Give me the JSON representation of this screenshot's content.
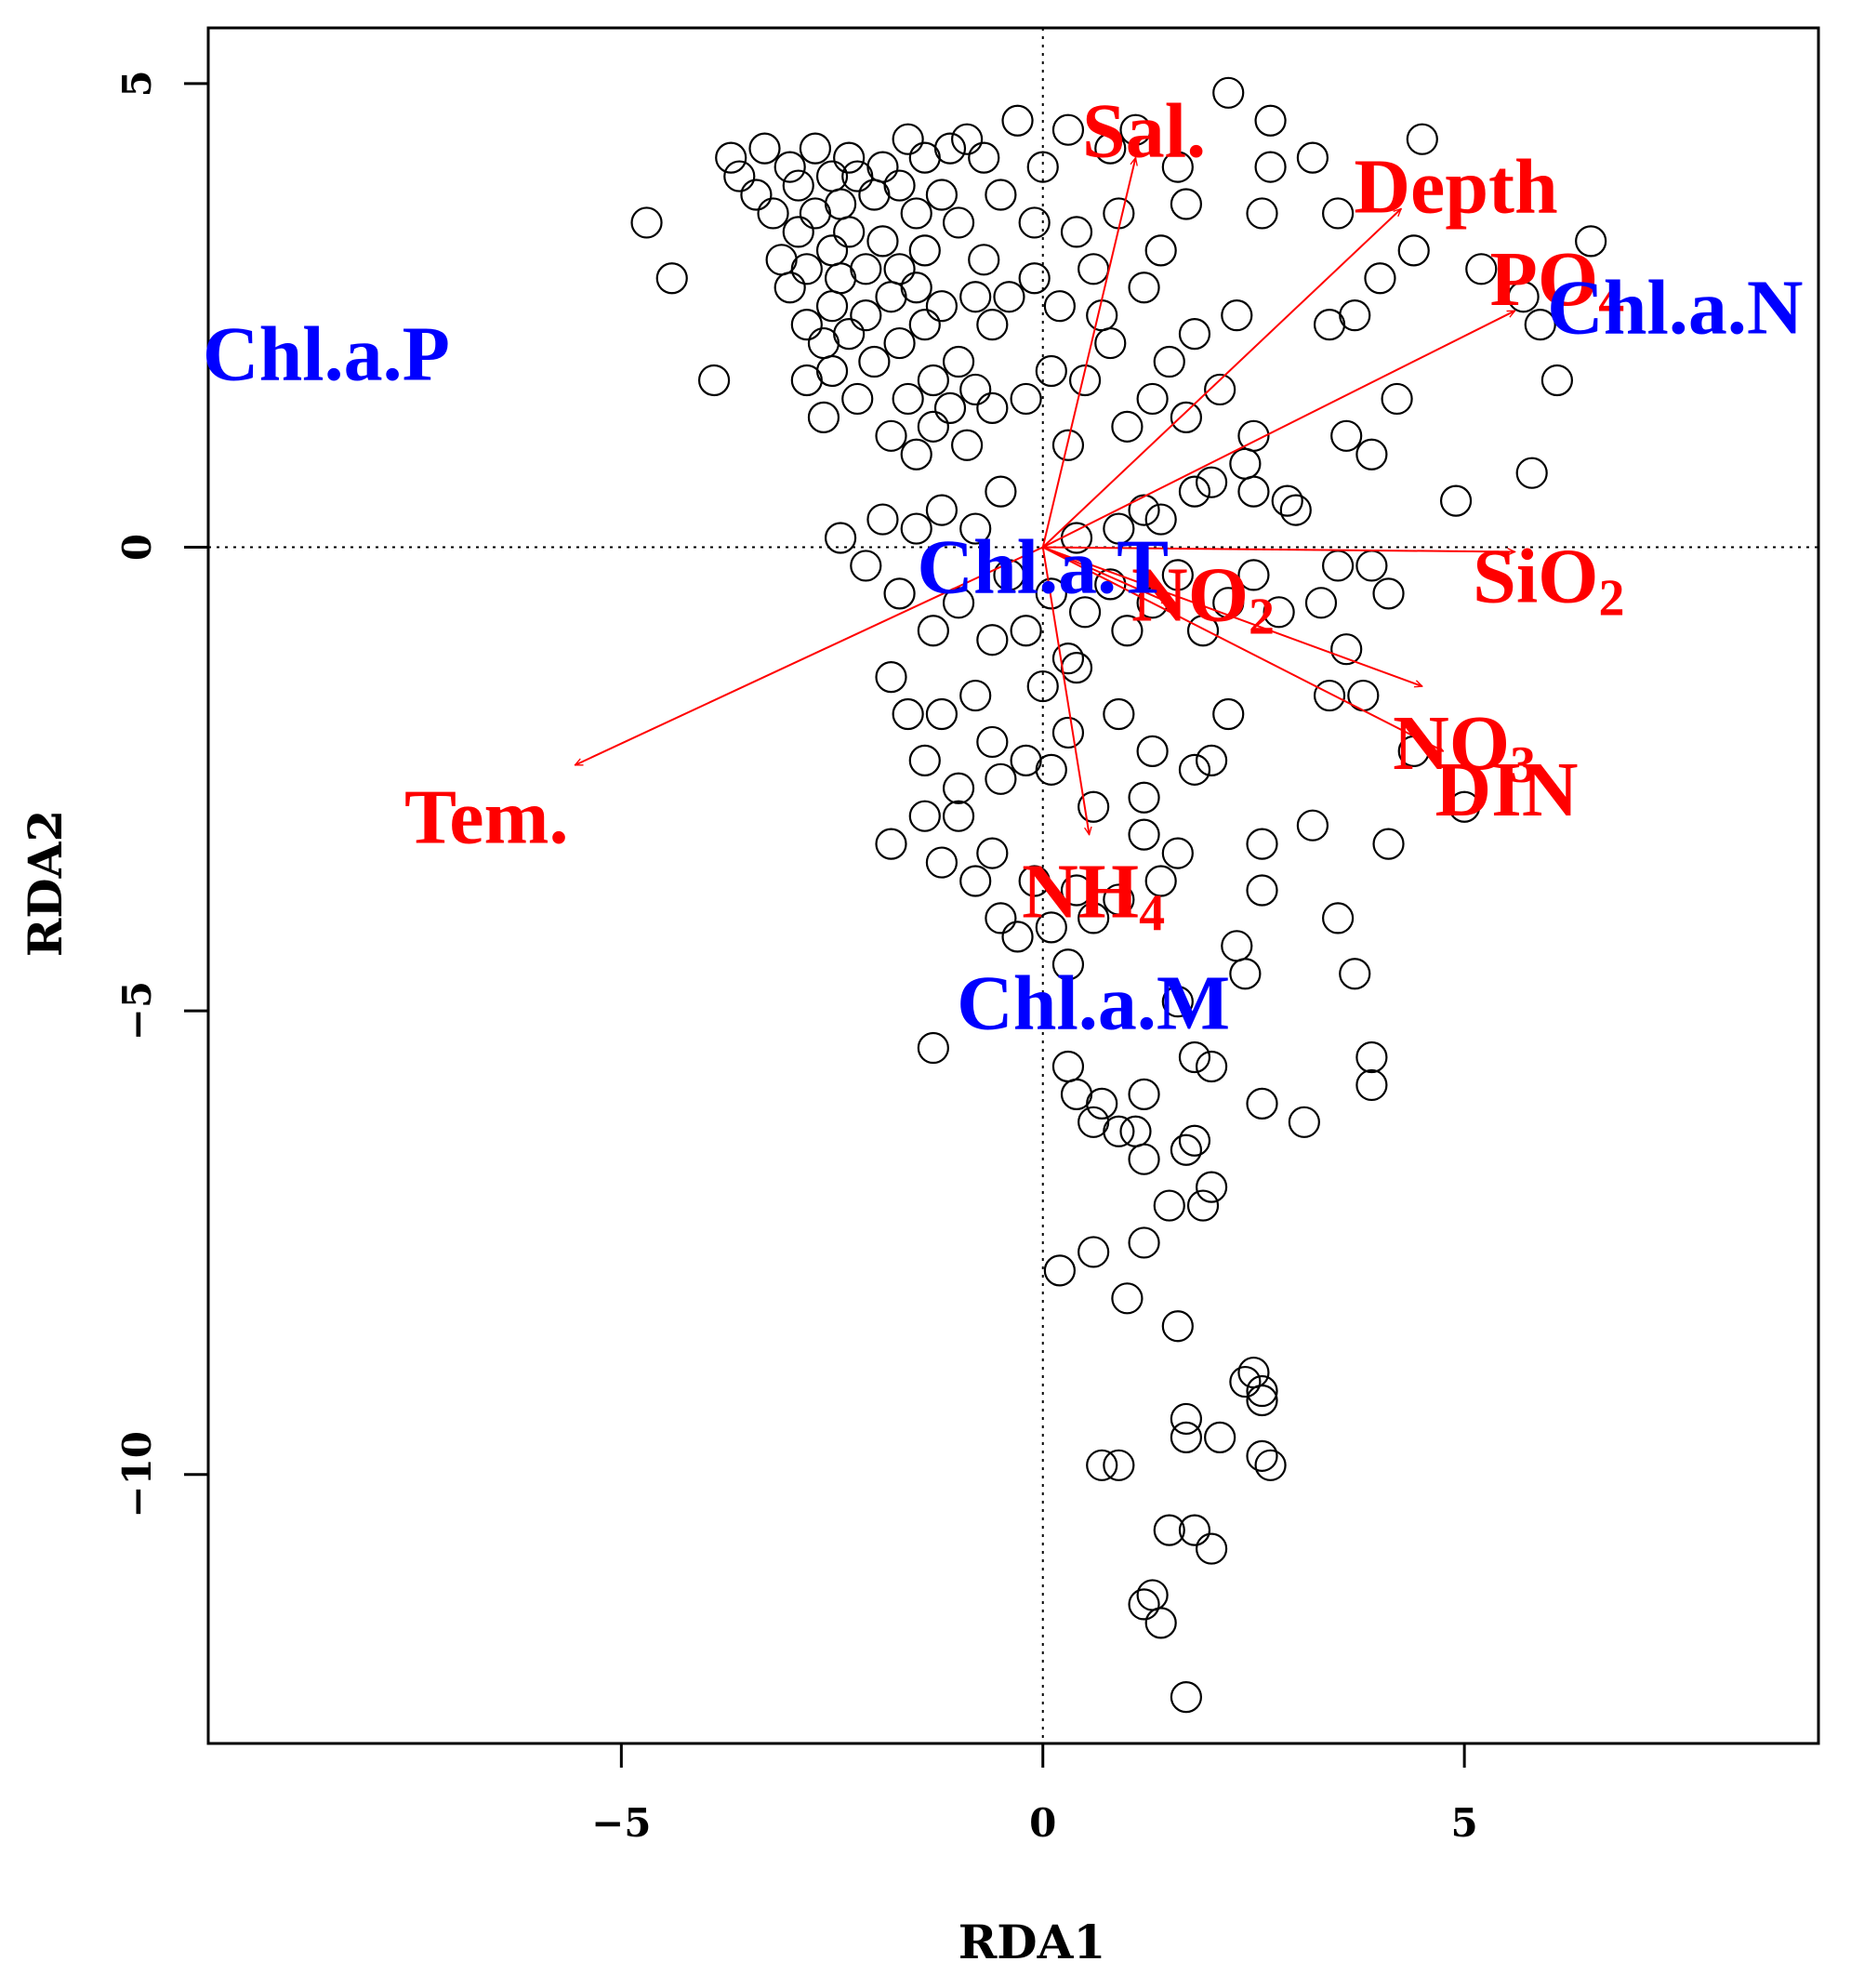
{
  "chart_data": {
    "type": "scatter",
    "xlabel": "RDA1",
    "ylabel": "RDA2",
    "xlim": [
      -9.9,
      9.2
    ],
    "ylim": [
      -12.9,
      5.6
    ],
    "x_ticks": [
      {
        "value": -5,
        "label": "−5"
      },
      {
        "value": 0,
        "label": "0"
      },
      {
        "value": 5,
        "label": "5"
      }
    ],
    "y_ticks": [
      {
        "value": -10,
        "label": "−10"
      },
      {
        "value": -5,
        "label": "−5"
      },
      {
        "value": 0,
        "label": "0"
      },
      {
        "value": 5,
        "label": "5"
      }
    ],
    "reference_lines": {
      "x": 0,
      "y": 0,
      "style": "dotted"
    },
    "colors": {
      "environment": "#ff0000",
      "response": "#0000ff",
      "points": "#000000"
    },
    "env_vectors": [
      {
        "id": "sal",
        "base": "Sal.",
        "sub": "",
        "x": 1.1,
        "y": 4.2,
        "label_x": 1.2,
        "label_y": 4.4
      },
      {
        "id": "depth",
        "base": "Depth",
        "sub": "",
        "x": 4.25,
        "y": 3.65,
        "label_x": 4.9,
        "label_y": 3.8
      },
      {
        "id": "po4",
        "base": "PO",
        "sub": "4",
        "x": 5.6,
        "y": 2.55,
        "label_x": 6.1,
        "label_y": 2.8
      },
      {
        "id": "sio2",
        "base": "SiO",
        "sub": "2",
        "x": 5.6,
        "y": -0.05,
        "label_x": 6.0,
        "label_y": -0.4
      },
      {
        "id": "no2",
        "base": "NO",
        "sub": "2",
        "x": 1.5,
        "y": -0.6,
        "label_x": 1.9,
        "label_y": -0.6
      },
      {
        "id": "no3",
        "base": "NO",
        "sub": "3",
        "x": 4.5,
        "y": -1.5,
        "label_x": 5.0,
        "label_y": -2.2
      },
      {
        "id": "din",
        "base": "DIN",
        "sub": "",
        "x": 4.75,
        "y": -2.2,
        "label_x": 5.5,
        "label_y": -2.7
      },
      {
        "id": "nh4",
        "base": "NH",
        "sub": "4",
        "x": 0.55,
        "y": -3.1,
        "label_x": 0.6,
        "label_y": -3.8
      },
      {
        "id": "tem",
        "base": "Tem.",
        "sub": "",
        "x": -5.55,
        "y": -2.35,
        "label_x": -6.6,
        "label_y": -3.0
      }
    ],
    "response_labels": [
      {
        "id": "chl-a-p",
        "text": "Chl.a.P",
        "x": -8.5,
        "y": 2.0
      },
      {
        "id": "chl-a-n",
        "text": "Chl.a.N",
        "x": 7.5,
        "y": 2.5
      },
      {
        "id": "chl-a-t",
        "text": "Chl.a.T",
        "x": 0.0,
        "y": -0.3
      },
      {
        "id": "chl-a-m",
        "text": "Chl.a.M",
        "x": 0.6,
        "y": -5.0
      }
    ],
    "points": [
      [
        -4.7,
        3.5
      ],
      [
        -4.4,
        2.9
      ],
      [
        -3.9,
        1.8
      ],
      [
        -3.7,
        4.2
      ],
      [
        -3.6,
        4.0
      ],
      [
        -3.4,
        3.8
      ],
      [
        -3.3,
        4.3
      ],
      [
        -3.2,
        3.6
      ],
      [
        -3.1,
        3.1
      ],
      [
        -3.0,
        4.1
      ],
      [
        -3.0,
        2.8
      ],
      [
        -2.9,
        3.9
      ],
      [
        -2.9,
        3.4
      ],
      [
        -2.8,
        3.0
      ],
      [
        -2.8,
        2.4
      ],
      [
        -2.8,
        1.8
      ],
      [
        -2.7,
        4.3
      ],
      [
        -2.7,
        3.6
      ],
      [
        -2.6,
        2.2
      ],
      [
        -2.6,
        1.4
      ],
      [
        -2.5,
        4.0
      ],
      [
        -2.5,
        3.2
      ],
      [
        -2.5,
        2.6
      ],
      [
        -2.5,
        1.9
      ],
      [
        -2.4,
        3.7
      ],
      [
        -2.4,
        2.9
      ],
      [
        -2.3,
        4.2
      ],
      [
        -2.3,
        3.4
      ],
      [
        -2.3,
        2.3
      ],
      [
        -2.2,
        1.6
      ],
      [
        -2.2,
        4.0
      ],
      [
        -2.1,
        3.0
      ],
      [
        -2.1,
        2.5
      ],
      [
        -2.0,
        3.8
      ],
      [
        -2.0,
        2.0
      ],
      [
        -1.9,
        4.1
      ],
      [
        -1.9,
        3.3
      ],
      [
        -1.8,
        2.7
      ],
      [
        -1.8,
        1.2
      ],
      [
        -1.7,
        3.9
      ],
      [
        -1.7,
        3.0
      ],
      [
        -1.7,
        2.2
      ],
      [
        -1.6,
        4.4
      ],
      [
        -1.6,
        1.6
      ],
      [
        -1.5,
        3.6
      ],
      [
        -1.5,
        2.8
      ],
      [
        -1.5,
        1.0
      ],
      [
        -1.4,
        4.2
      ],
      [
        -1.4,
        3.2
      ],
      [
        -1.4,
        2.4
      ],
      [
        -1.3,
        1.8
      ],
      [
        -1.3,
        1.3
      ],
      [
        -1.2,
        3.8
      ],
      [
        -1.2,
        2.6
      ],
      [
        -1.1,
        4.3
      ],
      [
        -1.1,
        1.5
      ],
      [
        -1.0,
        3.5
      ],
      [
        -1.0,
        2.0
      ],
      [
        -0.9,
        4.4
      ],
      [
        -0.9,
        1.1
      ],
      [
        -0.8,
        2.7
      ],
      [
        -0.8,
        1.7
      ],
      [
        -0.7,
        4.2
      ],
      [
        -0.7,
        3.1
      ],
      [
        -0.6,
        2.4
      ],
      [
        -0.6,
        1.5
      ],
      [
        -0.5,
        3.8
      ],
      [
        -0.5,
        0.6
      ],
      [
        -0.4,
        2.7
      ],
      [
        -0.3,
        4.6
      ],
      [
        -0.2,
        1.6
      ],
      [
        -0.1,
        2.9
      ],
      [
        -0.1,
        3.5
      ],
      [
        0.0,
        4.1
      ],
      [
        0.1,
        1.9
      ],
      [
        0.2,
        2.6
      ],
      [
        0.3,
        4.5
      ],
      [
        0.3,
        1.1
      ],
      [
        0.4,
        3.4
      ],
      [
        0.5,
        1.8
      ],
      [
        0.6,
        3.0
      ],
      [
        0.7,
        2.5
      ],
      [
        0.8,
        4.3
      ],
      [
        0.8,
        2.2
      ],
      [
        0.9,
        3.6
      ],
      [
        1.0,
        1.3
      ],
      [
        1.1,
        4.5
      ],
      [
        1.2,
        2.8
      ],
      [
        1.3,
        1.6
      ],
      [
        1.4,
        3.2
      ],
      [
        1.5,
        2.0
      ],
      [
        1.6,
        4.1
      ],
      [
        1.7,
        3.7
      ],
      [
        1.7,
        1.4
      ],
      [
        1.8,
        2.3
      ],
      [
        2.0,
        0.7
      ],
      [
        2.1,
        1.7
      ],
      [
        2.2,
        4.9
      ],
      [
        2.3,
        2.5
      ],
      [
        2.4,
        0.9
      ],
      [
        2.5,
        1.2
      ],
      [
        2.6,
        3.6
      ],
      [
        2.7,
        4.1
      ],
      [
        2.7,
        4.6
      ],
      [
        2.9,
        0.5
      ],
      [
        3.2,
        4.2
      ],
      [
        3.4,
        2.4
      ],
      [
        3.5,
        3.6
      ],
      [
        3.6,
        1.2
      ],
      [
        3.7,
        2.5
      ],
      [
        3.9,
        1.0
      ],
      [
        4.0,
        2.9
      ],
      [
        4.2,
        1.6
      ],
      [
        4.4,
        3.2
      ],
      [
        4.5,
        4.4
      ],
      [
        4.9,
        0.5
      ],
      [
        5.2,
        3.0
      ],
      [
        5.8,
        0.8
      ],
      [
        5.9,
        2.4
      ],
      [
        6.1,
        1.8
      ],
      [
        6.5,
        3.3
      ],
      [
        5.7,
        2.7
      ],
      [
        3.0,
        0.4
      ],
      [
        2.5,
        0.6
      ],
      [
        1.8,
        0.6
      ],
      [
        1.4,
        0.3
      ],
      [
        1.2,
        0.4
      ],
      [
        0.9,
        0.2
      ],
      [
        0.4,
        0.1
      ],
      [
        -2.4,
        0.1
      ],
      [
        -2.1,
        -0.2
      ],
      [
        -1.9,
        0.3
      ],
      [
        -1.7,
        -0.5
      ],
      [
        -1.5,
        0.2
      ],
      [
        -1.3,
        -0.9
      ],
      [
        -1.2,
        0.4
      ],
      [
        -1.0,
        -0.6
      ],
      [
        -0.8,
        0.2
      ],
      [
        -0.6,
        -1.0
      ],
      [
        -0.4,
        -0.3
      ],
      [
        -0.2,
        -0.9
      ],
      [
        0.1,
        -0.5
      ],
      [
        0.3,
        -1.2
      ],
      [
        0.5,
        -0.7
      ],
      [
        0.8,
        -0.4
      ],
      [
        1.0,
        -0.9
      ],
      [
        1.3,
        -0.6
      ],
      [
        1.6,
        -0.3
      ],
      [
        1.9,
        -0.9
      ],
      [
        2.2,
        -0.6
      ],
      [
        2.5,
        -0.3
      ],
      [
        2.8,
        -0.7
      ],
      [
        3.3,
        -0.6
      ],
      [
        3.5,
        -0.2
      ],
      [
        3.6,
        -1.1
      ],
      [
        3.9,
        -0.2
      ],
      [
        4.1,
        -0.5
      ],
      [
        3.4,
        -1.6
      ],
      [
        3.8,
        -1.6
      ],
      [
        4.4,
        -2.2
      ],
      [
        5.0,
        -2.8
      ],
      [
        -1.8,
        -1.4
      ],
      [
        -1.6,
        -1.8
      ],
      [
        -1.4,
        -2.3
      ],
      [
        -1.2,
        -1.8
      ],
      [
        -1.0,
        -2.6
      ],
      [
        -0.8,
        -1.6
      ],
      [
        -0.6,
        -2.1
      ],
      [
        -0.5,
        -2.5
      ],
      [
        -0.2,
        -2.3
      ],
      [
        0.0,
        -1.5
      ],
      [
        0.1,
        -2.4
      ],
      [
        0.3,
        -2.0
      ],
      [
        0.4,
        -1.3
      ],
      [
        0.6,
        -2.8
      ],
      [
        0.9,
        -1.8
      ],
      [
        1.2,
        -2.7
      ],
      [
        1.3,
        -2.2
      ],
      [
        1.6,
        -3.3
      ],
      [
        1.8,
        -2.4
      ],
      [
        2.0,
        -2.3
      ],
      [
        2.2,
        -1.8
      ],
      [
        2.6,
        -3.2
      ],
      [
        2.6,
        -3.7
      ],
      [
        3.2,
        -3.0
      ],
      [
        3.5,
        -4.0
      ],
      [
        3.7,
        -4.6
      ],
      [
        3.9,
        -5.5
      ],
      [
        3.9,
        -5.8
      ],
      [
        4.1,
        -3.2
      ],
      [
        -1.8,
        -3.2
      ],
      [
        -1.4,
        -2.9
      ],
      [
        -1.2,
        -3.4
      ],
      [
        -1.0,
        -2.9
      ],
      [
        -0.8,
        -3.6
      ],
      [
        -0.6,
        -3.3
      ],
      [
        -0.5,
        -4.0
      ],
      [
        -0.3,
        -4.2
      ],
      [
        -0.1,
        -3.6
      ],
      [
        0.1,
        -4.1
      ],
      [
        0.3,
        -4.5
      ],
      [
        0.4,
        -3.7
      ],
      [
        0.6,
        -4.0
      ],
      [
        0.9,
        -3.8
      ],
      [
        1.2,
        -3.1
      ],
      [
        1.4,
        -3.6
      ],
      [
        1.6,
        -4.9
      ],
      [
        1.8,
        -5.5
      ],
      [
        2.0,
        -5.6
      ],
      [
        2.3,
        -4.3
      ],
      [
        2.4,
        -4.6
      ],
      [
        -1.3,
        -5.4
      ],
      [
        0.3,
        -5.6
      ],
      [
        0.4,
        -5.9
      ],
      [
        0.6,
        -6.2
      ],
      [
        0.7,
        -6.0
      ],
      [
        0.9,
        -6.3
      ],
      [
        1.1,
        -6.3
      ],
      [
        1.2,
        -6.6
      ],
      [
        1.2,
        -5.9
      ],
      [
        1.7,
        -6.5
      ],
      [
        1.8,
        -6.4
      ],
      [
        2.0,
        -6.9
      ],
      [
        2.6,
        -6.0
      ],
      [
        3.1,
        -6.2
      ],
      [
        1.5,
        -7.1
      ],
      [
        1.9,
        -7.1
      ],
      [
        0.6,
        -7.6
      ],
      [
        1.2,
        -7.5
      ],
      [
        0.2,
        -7.8
      ],
      [
        1.0,
        -8.1
      ],
      [
        1.6,
        -8.4
      ],
      [
        2.4,
        -9.0
      ],
      [
        2.5,
        -8.9
      ],
      [
        2.6,
        -9.2
      ],
      [
        2.6,
        -9.1
      ],
      [
        0.7,
        -9.9
      ],
      [
        0.9,
        -9.9
      ],
      [
        1.7,
        -9.4
      ],
      [
        1.7,
        -9.6
      ],
      [
        2.1,
        -9.6
      ],
      [
        2.6,
        -9.8
      ],
      [
        2.7,
        -9.9
      ],
      [
        1.5,
        -10.6
      ],
      [
        1.8,
        -10.6
      ],
      [
        2.0,
        -10.8
      ],
      [
        1.2,
        -11.4
      ],
      [
        1.3,
        -11.3
      ],
      [
        1.4,
        -11.6
      ],
      [
        1.7,
        -12.4
      ]
    ]
  }
}
